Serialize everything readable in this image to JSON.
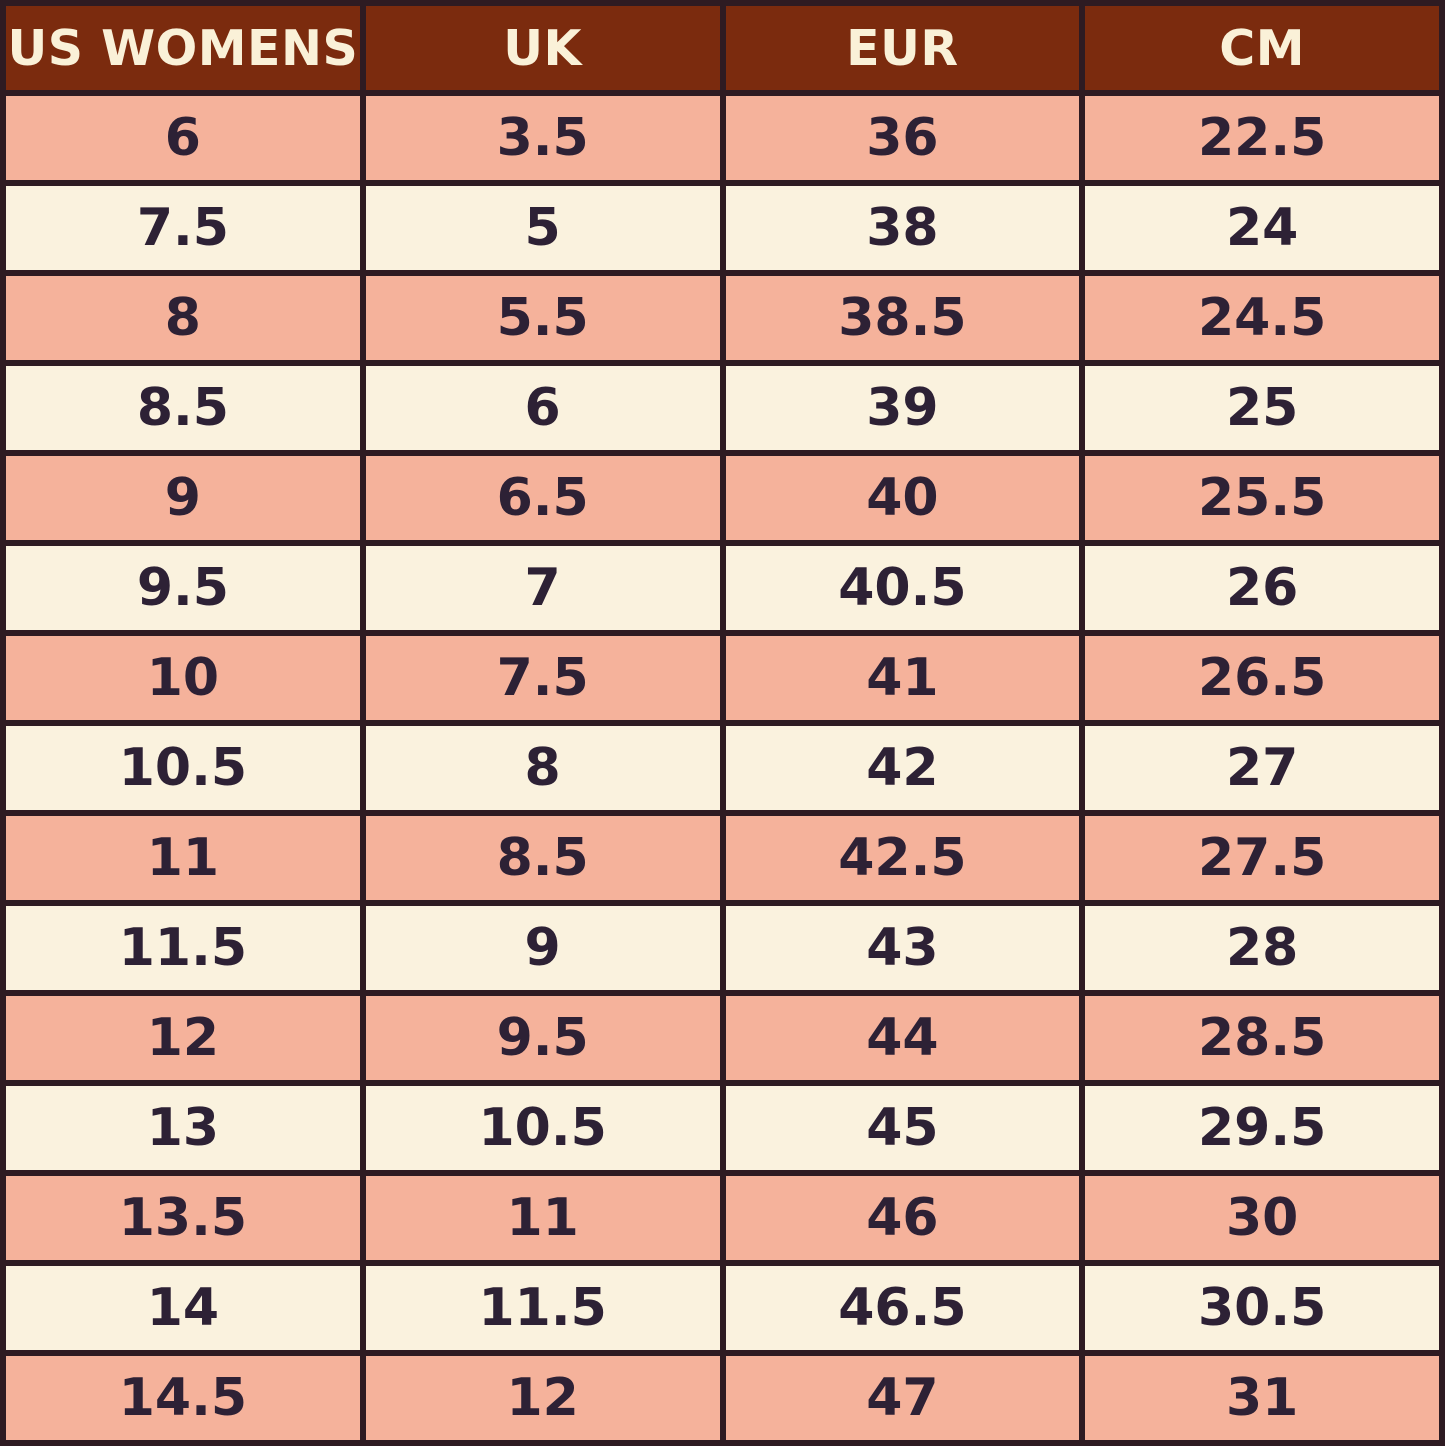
{
  "colors": {
    "header_bg": "#7B2B0E",
    "header_text": "#FAF1D8",
    "row_salmon": "#F5B29B",
    "row_cream": "#FAF2DE",
    "border": "#2E1B22",
    "cell_text": "#2D2135"
  },
  "chart_data": {
    "type": "table",
    "columns": [
      "US WOMENS",
      "UK",
      "EUR",
      "CM"
    ],
    "rows": [
      [
        "6",
        "3.5",
        "36",
        "22.5"
      ],
      [
        "7.5",
        "5",
        "38",
        "24"
      ],
      [
        "8",
        "5.5",
        "38.5",
        "24.5"
      ],
      [
        "8.5",
        "6",
        "39",
        "25"
      ],
      [
        "9",
        "6.5",
        "40",
        "25.5"
      ],
      [
        "9.5",
        "7",
        "40.5",
        "26"
      ],
      [
        "10",
        "7.5",
        "41",
        "26.5"
      ],
      [
        "10.5",
        "8",
        "42",
        "27"
      ],
      [
        "11",
        "8.5",
        "42.5",
        "27.5"
      ],
      [
        "11.5",
        "9",
        "43",
        "28"
      ],
      [
        "12",
        "9.5",
        "44",
        "28.5"
      ],
      [
        "13",
        "10.5",
        "45",
        "29.5"
      ],
      [
        "13.5",
        "11",
        "46",
        "30"
      ],
      [
        "14",
        "11.5",
        "46.5",
        "30.5"
      ],
      [
        "14.5",
        "12",
        "47",
        "31"
      ]
    ],
    "layout": {
      "grid": "on",
      "row_striping": [
        "salmon",
        "cream"
      ],
      "header_position": "top"
    }
  }
}
